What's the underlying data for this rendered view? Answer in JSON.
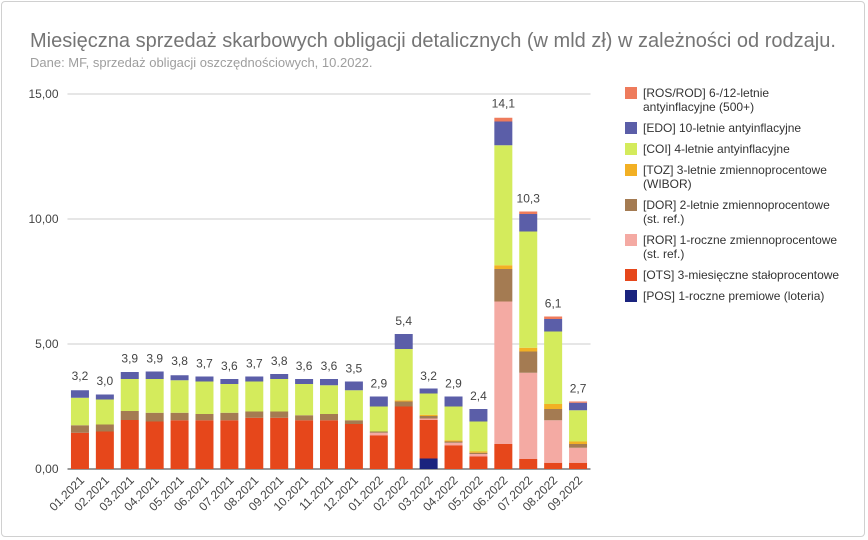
{
  "chart_data": {
    "type": "bar",
    "stacked": true,
    "title": "Miesięczna sprzedaż skarbowych obligacji detalicznych (w mld zł) w zależności od rodzaju.",
    "subtitle": "Dane: MF, sprzedaż obligacji oszczędnościowych, 10.2022.",
    "categories": [
      "01.2021",
      "02.2021",
      "03.2021",
      "04.2021",
      "05.2021",
      "06.2021",
      "07.2021",
      "08.2021",
      "09.2021",
      "10.2021",
      "11.2021",
      "12.2021",
      "01.2022",
      "02.2022",
      "03.2022",
      "04.2022",
      "05.2022",
      "06.2022",
      "07.2022",
      "08.2022",
      "09.2022"
    ],
    "series": [
      {
        "name": "[ROS/ROD] 6-/12-letnie antyinflacyjne (500+)",
        "color": "#ee7b5c",
        "values": [
          0,
          0,
          0,
          0,
          0,
          0,
          0,
          0,
          0,
          0,
          0,
          0,
          0,
          0,
          0,
          0,
          0,
          0.15,
          0.1,
          0.1,
          0.05
        ]
      },
      {
        "name": "[EDO] 10-letnie antyinflacyjne",
        "color": "#5b5ea8",
        "values": [
          0.3,
          0.2,
          0.28,
          0.3,
          0.2,
          0.2,
          0.2,
          0.2,
          0.2,
          0.2,
          0.25,
          0.35,
          0.4,
          0.6,
          0.2,
          0.4,
          0.5,
          0.95,
          0.7,
          0.5,
          0.3
        ]
      },
      {
        "name": "[COI] 4-letnie antyinflacyjne",
        "color": "#d4eb5c",
        "values": [
          1.1,
          1.0,
          1.28,
          1.35,
          1.3,
          1.3,
          1.15,
          1.2,
          1.3,
          1.25,
          1.15,
          1.2,
          1.0,
          2.05,
          0.85,
          1.35,
          1.2,
          4.8,
          4.65,
          2.9,
          1.25
        ]
      },
      {
        "name": "[TOZ] 3-letnie zmiennoprocentowe (WIBOR)",
        "color": "#f2b024",
        "values": [
          0,
          0,
          0,
          0,
          0,
          0,
          0,
          0,
          0,
          0,
          0,
          0,
          0,
          0.05,
          0.05,
          0.05,
          0.05,
          0.15,
          0.15,
          0.2,
          0.1
        ]
      },
      {
        "name": "[DOR] 2-letnie zmiennoprocentowe (st. ref.)",
        "color": "#a47b52",
        "values": [
          0.3,
          0.28,
          0.36,
          0.35,
          0.3,
          0.25,
          0.3,
          0.25,
          0.25,
          0.2,
          0.25,
          0.15,
          0.05,
          0.2,
          0.1,
          0.05,
          0.05,
          1.3,
          0.85,
          0.45,
          0.15
        ]
      },
      {
        "name": "[ROR] 1-roczne zmiennoprocentowe (st. ref.)",
        "color": "#f4aaa3",
        "values": [
          0,
          0,
          0,
          0,
          0,
          0,
          0,
          0,
          0,
          0,
          0,
          0,
          0.1,
          0,
          0.05,
          0.1,
          0.1,
          5.7,
          3.45,
          1.7,
          0.6
        ]
      },
      {
        "name": "[OTS] 3-miesięczne stałoprocentowe",
        "color": "#e6471b",
        "values": [
          1.45,
          1.5,
          1.96,
          1.9,
          1.95,
          1.95,
          1.95,
          2.05,
          2.05,
          1.95,
          1.95,
          1.8,
          1.35,
          2.5,
          1.55,
          0.95,
          0.5,
          1.0,
          0.4,
          0.25,
          0.25
        ]
      },
      {
        "name": "[POS] 1-roczne premiowe (loteria)",
        "color": "#1a237e",
        "values": [
          0,
          0,
          0,
          0,
          0,
          0,
          0,
          0,
          0,
          0,
          0,
          0,
          0,
          0,
          0.42,
          0,
          0,
          0,
          0,
          0,
          0
        ]
      }
    ],
    "totals": {
      "values": [
        3.2,
        3.0,
        3.9,
        3.9,
        3.8,
        3.7,
        3.6,
        3.7,
        3.8,
        3.6,
        3.6,
        3.5,
        2.9,
        5.4,
        3.2,
        2.9,
        2.4,
        14.1,
        10.3,
        6.1,
        2.7
      ],
      "value_labels": [
        "3,2",
        "3,0",
        "3,9",
        "3,9",
        "3,8",
        "3,7",
        "3,6",
        "3,7",
        "3,8",
        "3,6",
        "3,6",
        "3,5",
        "2,9",
        "5,4",
        "3,2",
        "2,9",
        "2,4",
        "14,1",
        "10,3",
        "6,1",
        "2,7"
      ]
    },
    "ylim": [
      0,
      15
    ],
    "yticks": [
      {
        "value": 0,
        "label": "0,00"
      },
      {
        "value": 5,
        "label": "5,00"
      },
      {
        "value": 10,
        "label": "10,00"
      },
      {
        "value": 15,
        "label": "15,00"
      }
    ],
    "grid": true,
    "legend": "right"
  }
}
